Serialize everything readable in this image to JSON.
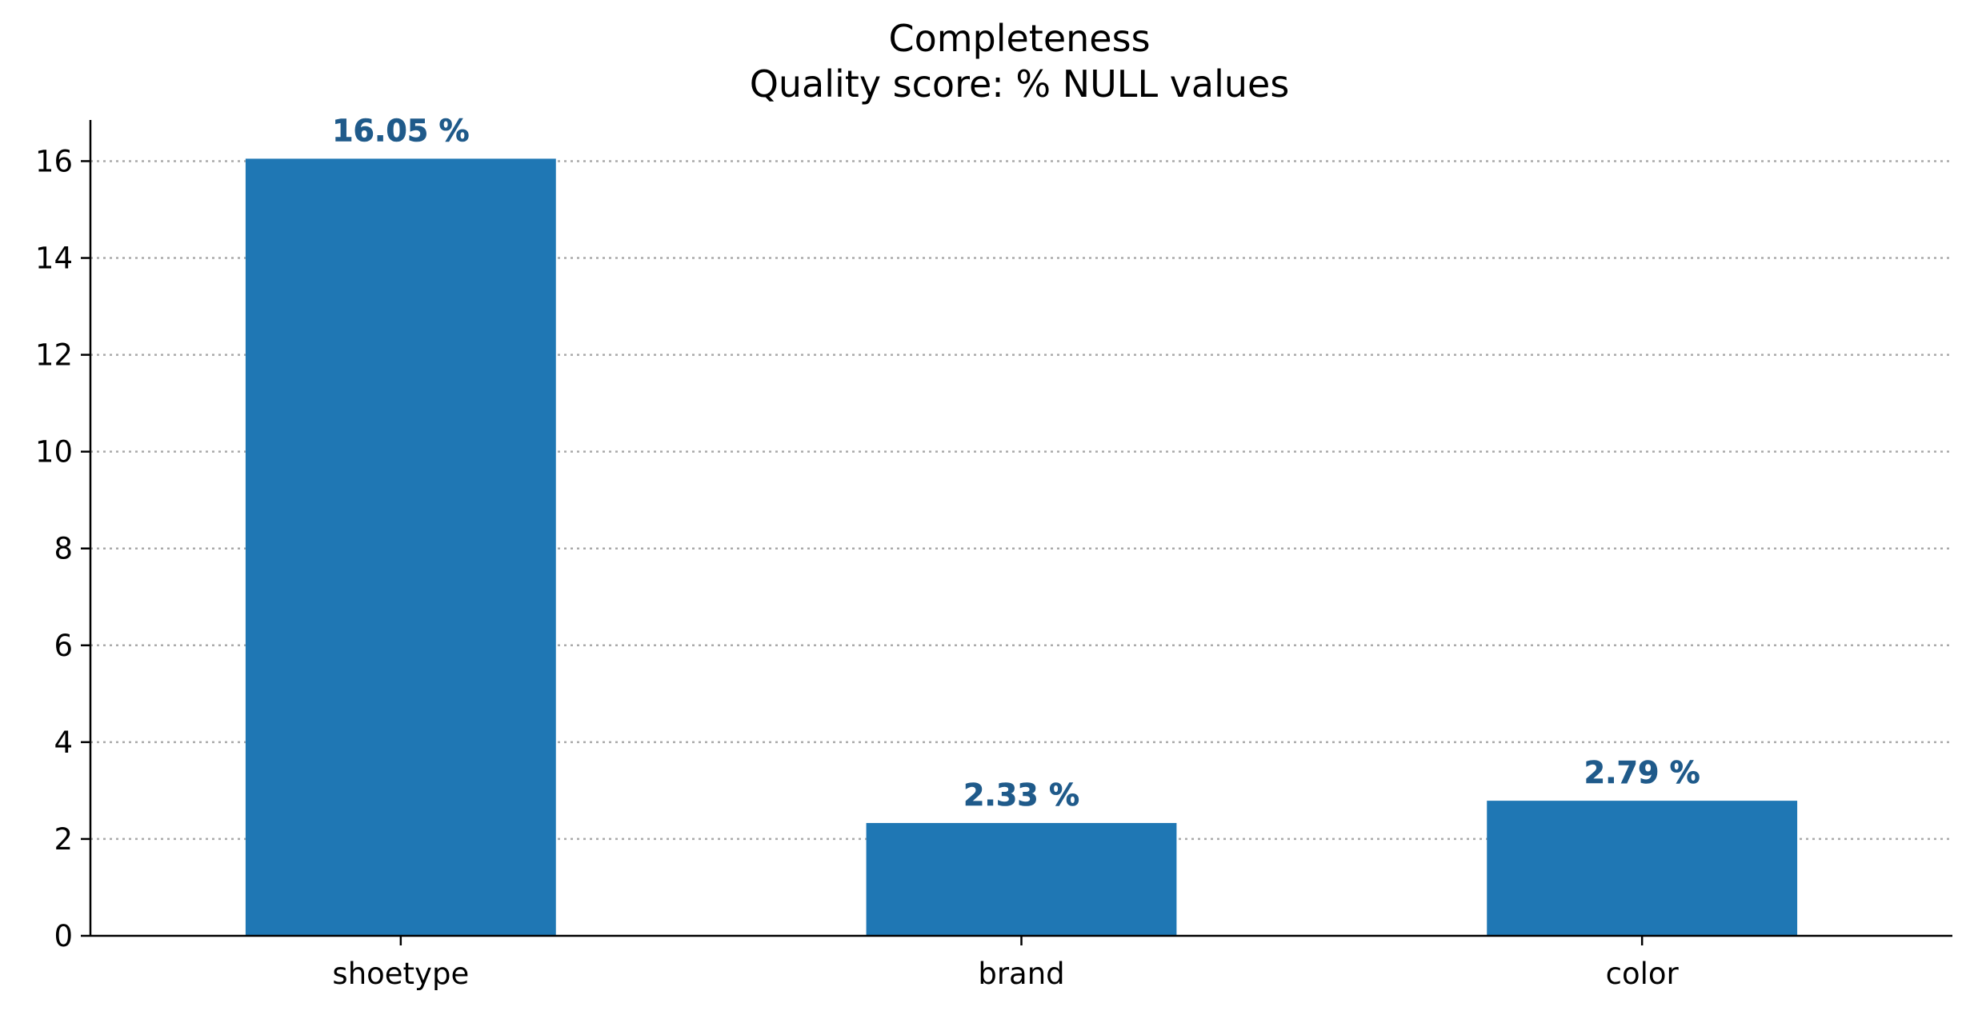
{
  "chart_data": {
    "type": "bar",
    "title": "Completeness",
    "subtitle": "Quality score: % NULL values",
    "xlabel": "",
    "ylabel": "",
    "categories": [
      "shoetype",
      "brand",
      "color"
    ],
    "values": [
      16.05,
      2.33,
      2.79
    ],
    "data_labels": [
      "16.05 %",
      "2.33 %",
      "2.79 %"
    ],
    "ylim": [
      0,
      16.85
    ],
    "yticks": [
      0,
      2,
      4,
      6,
      8,
      10,
      12,
      14,
      16
    ],
    "grid": "y-dotted",
    "bar_color": "#1f77b4",
    "label_color": "#1f5a8a"
  }
}
